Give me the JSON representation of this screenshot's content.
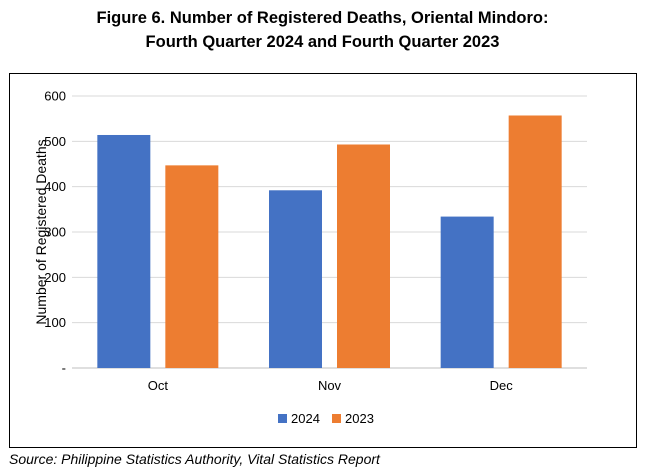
{
  "title": {
    "line1": "Figure 6.  Number of Registered Deaths, Oriental Mindoro:",
    "line2": "Fourth Quarter 2024 and Fourth Quarter 2023"
  },
  "source": "Source: Philippine Statistics Authority, Vital Statistics Report",
  "chart_data": {
    "type": "bar",
    "categories": [
      "Oct",
      "Nov",
      "Dec"
    ],
    "series": [
      {
        "name": "2024",
        "values": [
          514,
          392,
          334
        ],
        "color": "#4472C4"
      },
      {
        "name": "2023",
        "values": [
          447,
          493,
          557
        ],
        "color": "#ED7D31"
      }
    ],
    "ylabel": "Number of Registered Deaths",
    "xlabel": "",
    "ylim": [
      0,
      600
    ],
    "yticks": [
      0,
      100,
      200,
      300,
      400,
      500,
      600
    ],
    "ytick_labels": [
      "-",
      "100",
      "200",
      "300",
      "400",
      "500",
      "600"
    ],
    "grid": true,
    "legend": "bottom"
  }
}
